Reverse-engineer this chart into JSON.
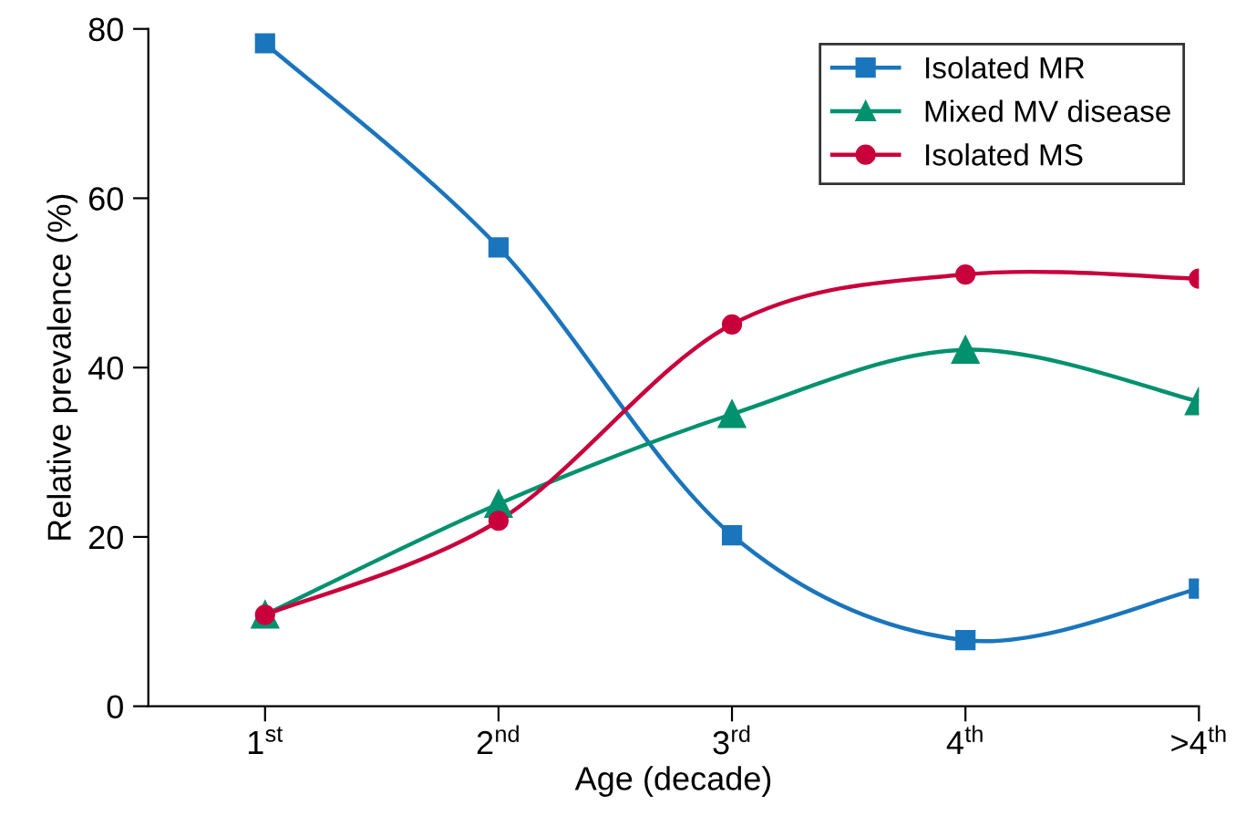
{
  "chart_data": {
    "type": "line",
    "xlabel": "Age (decade)",
    "ylabel": "Relative prevalence (%)",
    "categories": [
      "1$^{st}$",
      "2$^{nd}$",
      "3$^{rd}$",
      "4$^{th}$",
      ">4$^{th}$"
    ],
    "ylim": [
      0,
      80
    ],
    "yticks": [
      0,
      20,
      40,
      60,
      80
    ],
    "grid": false,
    "legend": "top right",
    "series": [
      {
        "name": "Isolated MR",
        "color": "#1a75bc",
        "marker": "square",
        "values": [
          78.3,
          54.2,
          20.2,
          7.8,
          13.9
        ]
      },
      {
        "name": "Mixed MV disease",
        "color": "#00916e",
        "marker": "triangle",
        "values": [
          10.8,
          23.9,
          34.5,
          42.1,
          36.0
        ]
      },
      {
        "name": "Isolated MS",
        "color": "#c8003c",
        "marker": "circle",
        "values": [
          10.8,
          21.9,
          45.1,
          51.0,
          50.5
        ]
      }
    ]
  }
}
